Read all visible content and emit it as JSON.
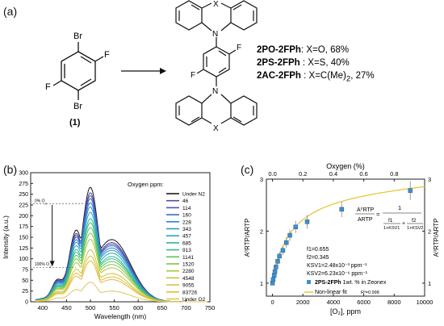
{
  "panel_a": {
    "label": "(a)",
    "atoms": {
      "br": "Br",
      "f": "F",
      "n": "N",
      "x": "X"
    },
    "compound_number": "(1)",
    "compounds": [
      {
        "name": "2PO-2FPh",
        "detail": ": X=O, 68%"
      },
      {
        "name": "2PS-2FPh",
        "detail": " : X=S, 40%"
      },
      {
        "name": "2AC-2FPh",
        "detail": " : X=C(Me)",
        "sub": "2",
        "tail": ", 27%"
      }
    ]
  },
  "panel_b": {
    "label": "(b)",
    "annot_top": "0% O",
    "annot_top_sub": "2",
    "annot_bottom": "100% O",
    "annot_bottom_sub": "2",
    "legend_title": "Oxygen ppm:",
    "legend_items": [
      "Under N2",
      "46",
      "114",
      "160",
      "228",
      "343",
      "457",
      "685",
      "913",
      "1141",
      "1520",
      "2280",
      "4548",
      "9055",
      "83726",
      "Under O2"
    ],
    "legend_colors": [
      "#1a1a1a",
      "#5a4a9f",
      "#4b56b5",
      "#3d67c9",
      "#2f7fd5",
      "#2b98c9",
      "#2aa8b3",
      "#2cb59a",
      "#39bd7e",
      "#5cc25f",
      "#82c546",
      "#a8c63b",
      "#c9c538",
      "#dcc23a",
      "#e8b93e",
      "#e3c45a"
    ],
    "chart_data": {
      "type": "line",
      "xlabel": "Wavelength (nm)",
      "ylabel": "Intensity (a.u.)",
      "xlim": [
        375,
        750
      ],
      "ylim": [
        0,
        300
      ],
      "xticks": [
        400,
        450,
        500,
        550,
        600,
        650,
        700,
        750
      ],
      "yticks": [
        0,
        25,
        50,
        75,
        100,
        125,
        150,
        175,
        200,
        225,
        250,
        275,
        300
      ],
      "peaks": [
        {
          "series": "Under N2",
          "peak": 275
        },
        {
          "series": "46",
          "peak": 262
        },
        {
          "series": "114",
          "peak": 255
        },
        {
          "series": "160",
          "peak": 248
        },
        {
          "series": "228",
          "peak": 238
        },
        {
          "series": "343",
          "peak": 228
        },
        {
          "series": "457",
          "peak": 215
        },
        {
          "series": "685",
          "peak": 200
        },
        {
          "series": "913",
          "peak": 190
        },
        {
          "series": "1141",
          "peak": 178
        },
        {
          "series": "1520",
          "peak": 165
        },
        {
          "series": "2280",
          "peak": 150
        },
        {
          "series": "4548",
          "peak": 125
        },
        {
          "series": "9055",
          "peak": 110
        },
        {
          "series": "83726",
          "peak": 98
        },
        {
          "series": "Under O2",
          "peak": 47
        }
      ]
    }
  },
  "panel_c": {
    "label": "(c)",
    "top_axis_label": "Oxygen (%)",
    "bottom_axis_label": "[O₂], ppm",
    "ylabel": "A⁰RTP/ARTP",
    "equation": {
      "lhs_num": "A⁰RTP",
      "lhs_den": "ARTP",
      "rhs_num": "1",
      "f1": "f1",
      "f2": "f2",
      "k1": "1+KSV1",
      "k2": "1+KSV2"
    },
    "params": [
      "f1=0.655",
      "f2=0.345",
      "KSV1=2.48x10⁻³ ppm⁻¹",
      "KSV2=6.23x10⁻⁶ ppm⁻¹"
    ],
    "legend": {
      "marker_label_bold": "2PS-2FPh",
      "marker_label_rest": " 1wt. % in Zeonex",
      "fit_label": "Non-linear fit",
      "r2": "R²=0.998"
    },
    "chart_data": {
      "type": "scatter",
      "xlabel": "[O2], ppm",
      "ylabel": "A0RTP/ARTP",
      "xlim": [
        -400,
        10000
      ],
      "ylim": [
        0.75,
        3.0
      ],
      "xticks": [
        0,
        2000,
        4000,
        6000,
        8000,
        10000
      ],
      "yticks": [
        1,
        2,
        3
      ],
      "top_xticks": [
        "0.0",
        "0.2",
        "0.4",
        "0.6",
        "0.8"
      ],
      "points": [
        {
          "x": 0,
          "y": 1.0
        },
        {
          "x": 46,
          "y": 1.07
        },
        {
          "x": 114,
          "y": 1.15
        },
        {
          "x": 160,
          "y": 1.22
        },
        {
          "x": 228,
          "y": 1.31
        },
        {
          "x": 343,
          "y": 1.42
        },
        {
          "x": 457,
          "y": 1.52
        },
        {
          "x": 685,
          "y": 1.63
        },
        {
          "x": 913,
          "y": 1.78
        },
        {
          "x": 1141,
          "y": 1.92
        },
        {
          "x": 1520,
          "y": 2.08
        },
        {
          "x": 2280,
          "y": 2.18
        },
        {
          "x": 4548,
          "y": 2.42
        },
        {
          "x": 9055,
          "y": 2.78
        }
      ],
      "errors": [
        0.02,
        0.03,
        0.04,
        0.05,
        0.06,
        0.07,
        0.08,
        0.09,
        0.1,
        0.11,
        0.12,
        0.13,
        0.15,
        0.18
      ],
      "fit_color": "#e8c63a",
      "marker_color": "#3f8fce"
    }
  }
}
